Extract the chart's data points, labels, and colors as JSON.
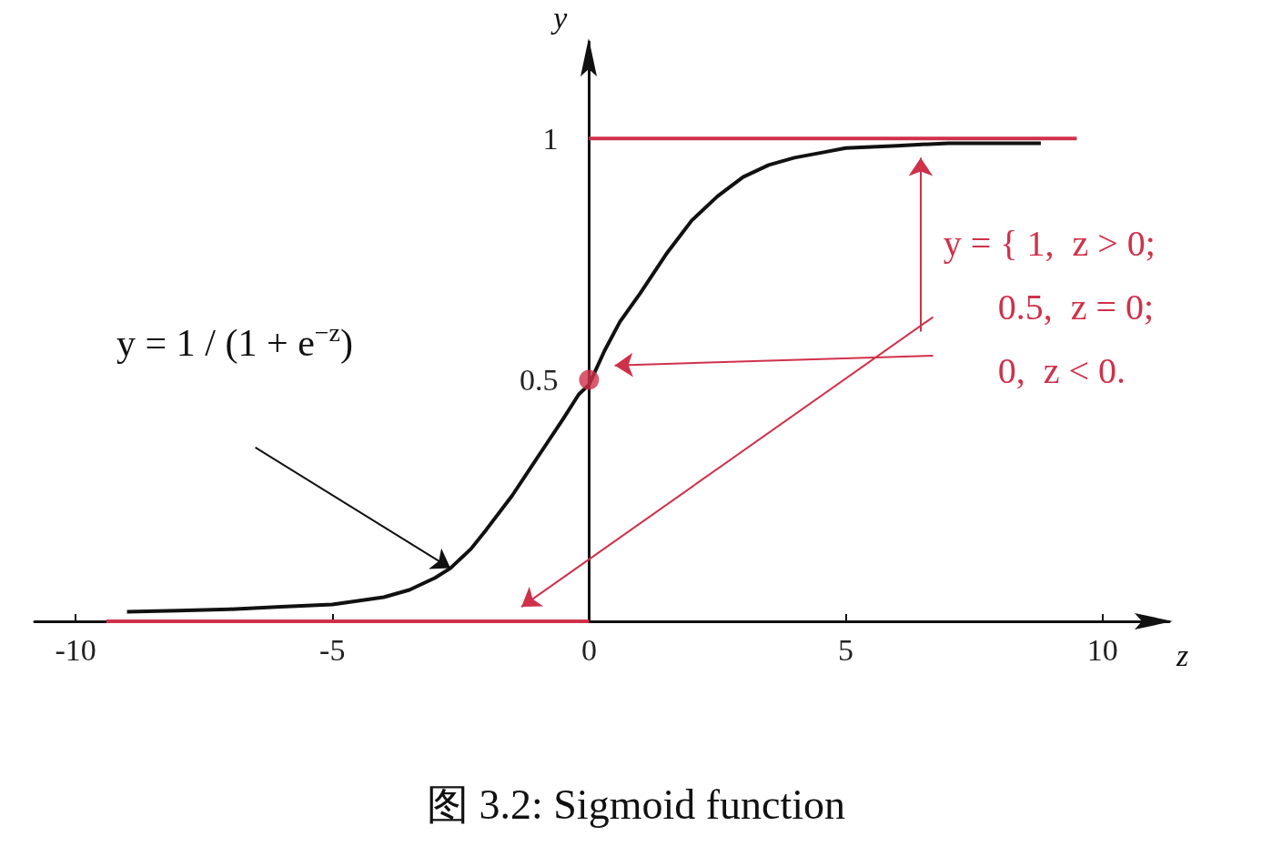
{
  "chart_data": {
    "type": "line",
    "title": "图 3.2: Sigmoid function",
    "xlabel": "z",
    "ylabel": "y",
    "xlim": [
      -10.8,
      11.3
    ],
    "ylim": [
      0,
      1.2
    ],
    "xticks": [
      -10,
      -5,
      0,
      5,
      10
    ],
    "yticks": [
      0.5,
      1
    ],
    "grid": false,
    "series": [
      {
        "color": "#111111",
        "x": [
          -9,
          -8,
          -7,
          -6,
          -5,
          -4,
          -3.5,
          -3,
          -2.7,
          -2.3,
          -2,
          -1.5,
          -1,
          -0.5,
          -0.2,
          0,
          0.3,
          0.6,
          1,
          1.5,
          2,
          2.5,
          3,
          3.5,
          4,
          4.5,
          5,
          6,
          7,
          8,
          8.8
        ],
        "values": [
          0.02,
          0.022,
          0.025,
          0.03,
          0.035,
          0.05,
          0.065,
          0.09,
          0.11,
          0.15,
          0.19,
          0.26,
          0.34,
          0.42,
          0.47,
          0.49,
          0.56,
          0.62,
          0.68,
          0.76,
          0.83,
          0.88,
          0.92,
          0.945,
          0.96,
          0.97,
          0.98,
          0.985,
          0.99,
          0.99,
          0.99
        ]
      },
      {
        "color": "#d0314a",
        "x": [
          -9.4,
          0
        ],
        "values": [
          0,
          0
        ]
      },
      {
        "color": "#d0314a",
        "x": [
          0,
          9.5
        ],
        "values": [
          1,
          1
        ]
      },
      {
        "type": "scatter",
        "color": "#d0314a",
        "x": [
          0
        ],
        "values": [
          0.5
        ]
      }
    ],
    "annotations": [
      "y = 1 / (1 + e$^{−z}$)",
      "y = { 1,  z > 0;\n      0.5,  z = 0;\n      0,  z < 0."
    ]
  }
}
